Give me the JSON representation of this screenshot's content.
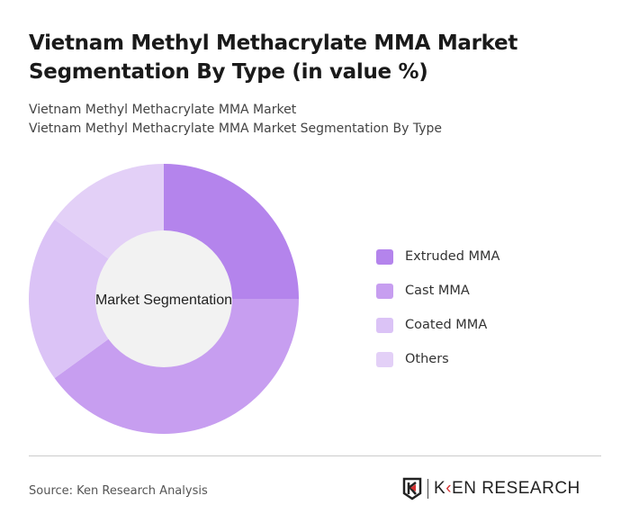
{
  "header": {
    "title": "Vietnam Methyl Methacrylate MMA Market Segmentation By Type (in value %)",
    "subtitle1": "Vietnam Methyl Methacrylate MMA Market",
    "subtitle2": "Vietnam Methyl Methacrylate MMA Market Segmentation By Type"
  },
  "chart_data": {
    "type": "pie",
    "donut": true,
    "center_label": "Market Segmentation",
    "categories": [
      "Extruded MMA",
      "Cast MMA",
      "Coated MMA",
      "Others"
    ],
    "values": [
      25,
      40,
      20,
      15
    ],
    "colors": [
      "#b484ec",
      "#c79ef0",
      "#dbc3f6",
      "#e3d0f7"
    ],
    "legend": "right"
  },
  "footer": {
    "source": "Source: Ken Research Analysis",
    "logo_text": "KEN RESEARCH"
  }
}
